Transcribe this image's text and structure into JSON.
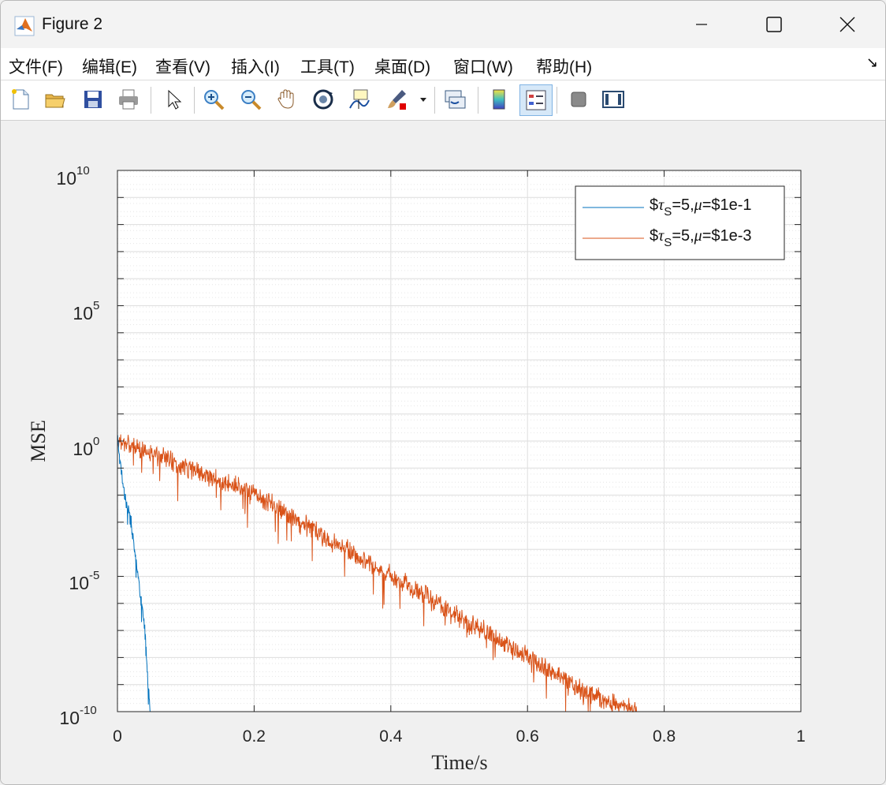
{
  "window": {
    "title": "Figure 2"
  },
  "menu": [
    {
      "label": "文件(F)"
    },
    {
      "label": "编辑(E)"
    },
    {
      "label": "查看(V)"
    },
    {
      "label": "插入(I)"
    },
    {
      "label": "工具(T)"
    },
    {
      "label": "桌面(D)"
    },
    {
      "label": "窗口(W)"
    },
    {
      "label": "帮助(H)"
    }
  ],
  "toolbar": [
    "new-file-icon",
    "open-folder-icon",
    "save-icon",
    "print-icon",
    "pointer-icon",
    "zoom-in-icon",
    "zoom-out-icon",
    "pan-hand-icon",
    "rotate-3d-icon",
    "data-cursor-icon",
    "brush-icon",
    "link-plot-icon",
    "colorbar-icon",
    "legend-icon",
    "hide-plot-tools-icon",
    "show-plot-tools-icon"
  ],
  "chart_data": {
    "type": "line",
    "xlabel": "Time/s",
    "ylabel": "MSE",
    "xlim": [
      0,
      1
    ],
    "ylim": [
      1e-10,
      10000000000.0
    ],
    "yscale": "log",
    "grid": true,
    "minor_grid": true,
    "x_ticks": [
      "0",
      "0.2",
      "0.4",
      "0.6",
      "0.8",
      "1"
    ],
    "y_ticks": [
      {
        "base": "10",
        "exp": "10"
      },
      {
        "base": "10",
        "exp": "5"
      },
      {
        "base": "10",
        "exp": "0"
      },
      {
        "base": "10",
        "exp": "-5"
      },
      {
        "base": "10",
        "exp": "-10"
      }
    ],
    "legend_position": "top-right",
    "series": [
      {
        "name": "$τS=5,μ=$1e-1",
        "name_parts": {
          "prefix": "$",
          "tau": "τ",
          "sub": "S",
          "mid": "=5,",
          "mu": "μ",
          "suffix": "=$1e-1"
        },
        "color": "#0072bd",
        "points": [
          [
            0,
            1.0
          ],
          [
            0.005,
            0.1
          ],
          [
            0.01,
            0.01
          ],
          [
            0.02,
            0.001
          ],
          [
            0.03,
            1e-05
          ],
          [
            0.04,
            1e-07
          ],
          [
            0.045,
            1e-09
          ],
          [
            0.048,
            1e-10
          ],
          [
            1.0,
            1e-10
          ]
        ]
      },
      {
        "name": "$τS=5,μ=$1e-3",
        "name_parts": {
          "prefix": "$",
          "tau": "τ",
          "sub": "S",
          "mid": "=5,",
          "mu": "μ",
          "suffix": "=$1e-3"
        },
        "color": "#d95319",
        "points": [
          [
            0,
            1.0
          ],
          [
            0.1,
            0.1
          ],
          [
            0.2,
            0.01
          ],
          [
            0.3,
            0.0003
          ],
          [
            0.4,
            1e-05
          ],
          [
            0.5,
            3e-07
          ],
          [
            0.6,
            1e-08
          ],
          [
            0.7,
            3e-10
          ],
          [
            0.76,
            1e-10
          ],
          [
            1.0,
            1e-10
          ]
        ]
      }
    ]
  }
}
